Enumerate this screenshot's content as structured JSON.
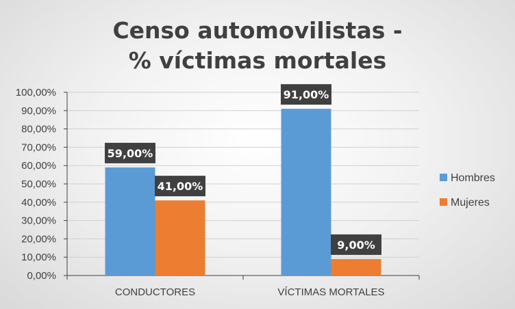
{
  "chart_data": {
    "type": "bar",
    "title": [
      "Censo automovilistas -",
      "% víctimas mortales"
    ],
    "categories": [
      "CONDUCTORES",
      "VÍCTIMAS MORTALES"
    ],
    "series": [
      {
        "name": "Hombres",
        "color": "#5b9bd5",
        "values": [
          59,
          91
        ],
        "labels": [
          "59,00%",
          "91,00%"
        ]
      },
      {
        "name": "Mujeres",
        "color": "#ed7d31",
        "values": [
          41,
          9
        ],
        "labels": [
          "41,00%",
          "9,00%"
        ]
      }
    ],
    "ylim": [
      0,
      100
    ],
    "yticks": [
      "0,00%",
      "10,00%",
      "20,00%",
      "30,00%",
      "40,00%",
      "50,00%",
      "60,00%",
      "70,00%",
      "80,00%",
      "90,00%",
      "100,00%"
    ],
    "grid": true,
    "legend_position": "right",
    "data_label_style": "dark-box"
  }
}
